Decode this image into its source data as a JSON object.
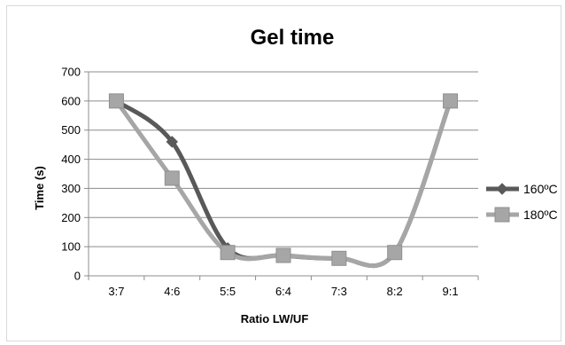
{
  "chart_data": {
    "type": "line",
    "title": "Gel time",
    "xlabel": "Ratio LW/UF",
    "ylabel": "Time (s)",
    "categories": [
      "3:7",
      "4:6",
      "5:5",
      "6:4",
      "7:3",
      "8:2",
      "9:1"
    ],
    "ylim": [
      0,
      700
    ],
    "yticks": [
      0,
      100,
      200,
      300,
      400,
      500,
      600,
      700
    ],
    "grid": "horizontal",
    "legend_position": "right",
    "series": [
      {
        "name": "160ºC",
        "values": [
          600,
          460,
          95,
          70,
          60,
          80,
          600
        ],
        "color": "#595959",
        "marker": "diamond"
      },
      {
        "name": "180ºC",
        "values": [
          600,
          335,
          80,
          70,
          60,
          80,
          600
        ],
        "color": "#a6a6a6",
        "marker": "square"
      }
    ]
  }
}
